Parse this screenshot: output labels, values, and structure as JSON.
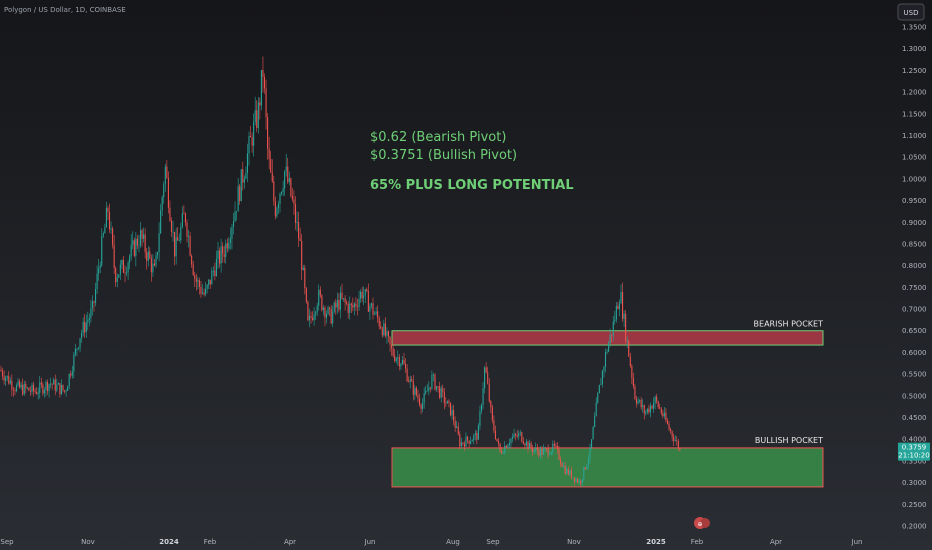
{
  "header": {
    "symbol": "Polygon / US Dollar, 1D, COINBASE"
  },
  "currency_button": "USD",
  "current_price": {
    "value": "0.3759",
    "countdown": "21:10:20"
  },
  "chart_data": {
    "type": "candlestick",
    "y_axis": {
      "min": 0.2,
      "max": 1.35,
      "step": 0.05,
      "position": "right"
    },
    "x_ticks": [
      {
        "label": "Sep",
        "bold": false
      },
      {
        "label": "Nov",
        "bold": false
      },
      {
        "label": "2024",
        "bold": true
      },
      {
        "label": "Feb",
        "bold": false
      },
      {
        "label": "Apr",
        "bold": false
      },
      {
        "label": "Jun",
        "bold": false
      },
      {
        "label": "Aug",
        "bold": false
      },
      {
        "label": "Sep",
        "bold": false
      },
      {
        "label": "Nov",
        "bold": false
      },
      {
        "label": "2025",
        "bold": true
      },
      {
        "label": "Feb",
        "bold": false
      },
      {
        "label": "Apr",
        "bold": false
      },
      {
        "label": "Jun",
        "bold": false
      }
    ],
    "price_path": [
      [
        0,
        0.56
      ],
      [
        15,
        0.52
      ],
      [
        35,
        0.51
      ],
      [
        50,
        0.53
      ],
      [
        65,
        0.51
      ],
      [
        80,
        0.64
      ],
      [
        93,
        0.7
      ],
      [
        100,
        0.82
      ],
      [
        108,
        0.93
      ],
      [
        115,
        0.78
      ],
      [
        125,
        0.8
      ],
      [
        140,
        0.87
      ],
      [
        155,
        0.78
      ],
      [
        165,
        1.03
      ],
      [
        175,
        0.83
      ],
      [
        185,
        0.92
      ],
      [
        195,
        0.77
      ],
      [
        205,
        0.73
      ],
      [
        215,
        0.8
      ],
      [
        225,
        0.84
      ],
      [
        235,
        0.93
      ],
      [
        245,
        1.03
      ],
      [
        252,
        1.1
      ],
      [
        258,
        1.15
      ],
      [
        263,
        1.25
      ],
      [
        268,
        1.05
      ],
      [
        275,
        0.93
      ],
      [
        285,
        1.02
      ],
      [
        292,
        0.95
      ],
      [
        300,
        0.85
      ],
      [
        308,
        0.66
      ],
      [
        318,
        0.73
      ],
      [
        330,
        0.68
      ],
      [
        340,
        0.72
      ],
      [
        352,
        0.7
      ],
      [
        362,
        0.74
      ],
      [
        372,
        0.7
      ],
      [
        382,
        0.66
      ],
      [
        392,
        0.6
      ],
      [
        402,
        0.58
      ],
      [
        412,
        0.52
      ],
      [
        422,
        0.48
      ],
      [
        432,
        0.54
      ],
      [
        442,
        0.5
      ],
      [
        452,
        0.46
      ],
      [
        460,
        0.39
      ],
      [
        470,
        0.4
      ],
      [
        478,
        0.41
      ],
      [
        485,
        0.57
      ],
      [
        492,
        0.44
      ],
      [
        500,
        0.37
      ],
      [
        510,
        0.4
      ],
      [
        520,
        0.41
      ],
      [
        530,
        0.38
      ],
      [
        542,
        0.37
      ],
      [
        555,
        0.38
      ],
      [
        565,
        0.33
      ],
      [
        575,
        0.31
      ],
      [
        580,
        0.3
      ],
      [
        590,
        0.37
      ],
      [
        598,
        0.5
      ],
      [
        606,
        0.6
      ],
      [
        612,
        0.65
      ],
      [
        620,
        0.74
      ],
      [
        626,
        0.64
      ],
      [
        635,
        0.5
      ],
      [
        645,
        0.46
      ],
      [
        655,
        0.49
      ],
      [
        662,
        0.46
      ],
      [
        670,
        0.42
      ],
      [
        675,
        0.4
      ],
      [
        680,
        0.3759
      ]
    ],
    "bearish_pocket": {
      "label": "BEARISH POCKET",
      "top": 0.65,
      "bottom": 0.617,
      "x_start": "Jun",
      "x_end": "Apr"
    },
    "bullish_pocket": {
      "label": "BULLISH POCKET",
      "top": 0.38,
      "bottom": 0.29,
      "x_start": "Jun",
      "x_end": "Apr"
    }
  },
  "annotations": [
    {
      "text": "$0.62 (Bearish Pivot)",
      "bold": false
    },
    {
      "text": "$0.3751 (Bullish Pivot)",
      "bold": false
    },
    {
      "text": "65% PLUS LONG POTENTIAL",
      "bold": true
    }
  ],
  "colors": {
    "up": "#26a69a",
    "down": "#ef5350",
    "bearish_fill": "#b23a48",
    "bullish_fill": "#3a8f4a",
    "annotation": "#6fcf77",
    "price_tag": "#26a69a"
  }
}
